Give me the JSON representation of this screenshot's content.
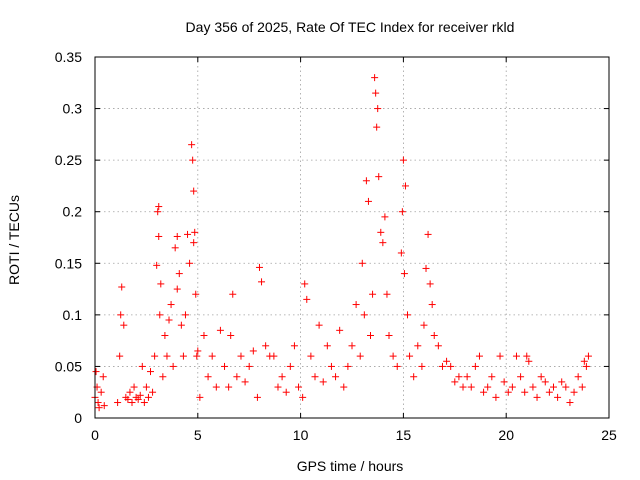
{
  "chart_data": {
    "type": "scatter",
    "title": "Day 356 of 2025, Rate Of TEC Index for receiver rkld",
    "xlabel": "GPS time / hours",
    "ylabel": "ROTI / TECUs",
    "xlim": [
      0,
      25
    ],
    "ylim": [
      0,
      0.35
    ],
    "xticks": [
      "0",
      "5",
      "10",
      "15",
      "20",
      "25"
    ],
    "yticks": [
      "0",
      "0.05",
      "0.1",
      "0.15",
      "0.2",
      "0.25",
      "0.3",
      "0.35"
    ],
    "grid": true,
    "marker": "+",
    "color": "#ff0000",
    "series": [
      {
        "x": [
          0.0,
          0.05,
          0.1,
          0.15,
          0.2,
          0.3,
          0.4,
          0.45,
          1.1,
          1.2,
          1.25,
          1.3,
          1.4,
          1.5,
          1.6,
          1.7,
          1.8,
          1.9,
          2.0,
          2.1,
          2.2,
          2.3,
          2.4,
          2.5,
          2.6,
          2.7,
          2.8,
          2.9,
          3.0,
          3.05,
          3.1,
          3.1,
          3.15,
          3.2,
          3.3,
          3.4,
          3.5,
          3.6,
          3.7,
          3.8,
          3.9,
          4.0,
          4.0,
          4.1,
          4.2,
          4.3,
          4.4,
          4.5,
          4.6,
          4.7,
          4.75,
          4.8,
          4.8,
          4.85,
          4.9,
          4.95,
          5.0,
          5.1,
          5.3,
          5.5,
          5.7,
          5.9,
          6.1,
          6.3,
          6.5,
          6.6,
          6.7,
          6.9,
          7.1,
          7.3,
          7.5,
          7.7,
          7.9,
          8.0,
          8.1,
          8.3,
          8.5,
          8.7,
          8.9,
          9.1,
          9.3,
          9.5,
          9.7,
          9.9,
          10.1,
          10.2,
          10.3,
          10.5,
          10.7,
          10.9,
          11.1,
          11.3,
          11.5,
          11.7,
          11.9,
          12.1,
          12.3,
          12.5,
          12.7,
          12.9,
          13.0,
          13.1,
          13.2,
          13.3,
          13.4,
          13.5,
          13.6,
          13.65,
          13.7,
          13.75,
          13.8,
          13.9,
          14.0,
          14.1,
          14.2,
          14.3,
          14.5,
          14.7,
          14.9,
          14.95,
          15.0,
          15.05,
          15.1,
          15.2,
          15.3,
          15.5,
          15.7,
          15.9,
          16.0,
          16.1,
          16.2,
          16.3,
          16.4,
          16.5,
          16.7,
          16.9,
          17.1,
          17.3,
          17.5,
          17.7,
          17.9,
          18.1,
          18.3,
          18.5,
          18.7,
          18.9,
          19.1,
          19.3,
          19.5,
          19.7,
          19.9,
          20.1,
          20.3,
          20.5,
          20.7,
          20.9,
          21.0,
          21.1,
          21.3,
          21.5,
          21.7,
          21.9,
          22.1,
          22.3,
          22.5,
          22.7,
          22.9,
          23.1,
          23.3,
          23.5,
          23.7,
          23.8,
          23.9,
          24.0
        ],
        "y": [
          0.02,
          0.045,
          0.03,
          0.015,
          0.01,
          0.025,
          0.04,
          0.012,
          0.015,
          0.06,
          0.1,
          0.127,
          0.09,
          0.02,
          0.018,
          0.025,
          0.015,
          0.03,
          0.02,
          0.018,
          0.022,
          0.05,
          0.015,
          0.03,
          0.02,
          0.045,
          0.025,
          0.06,
          0.148,
          0.2,
          0.205,
          0.176,
          0.1,
          0.13,
          0.04,
          0.08,
          0.06,
          0.095,
          0.11,
          0.05,
          0.165,
          0.176,
          0.125,
          0.14,
          0.09,
          0.06,
          0.1,
          0.178,
          0.15,
          0.265,
          0.25,
          0.22,
          0.17,
          0.18,
          0.12,
          0.06,
          0.065,
          0.02,
          0.08,
          0.04,
          0.06,
          0.03,
          0.085,
          0.05,
          0.03,
          0.08,
          0.12,
          0.04,
          0.06,
          0.035,
          0.05,
          0.065,
          0.02,
          0.146,
          0.132,
          0.07,
          0.06,
          0.06,
          0.03,
          0.04,
          0.025,
          0.05,
          0.07,
          0.03,
          0.02,
          0.13,
          0.115,
          0.06,
          0.04,
          0.09,
          0.035,
          0.07,
          0.05,
          0.04,
          0.085,
          0.03,
          0.05,
          0.07,
          0.11,
          0.06,
          0.15,
          0.1,
          0.23,
          0.21,
          0.08,
          0.12,
          0.33,
          0.315,
          0.282,
          0.3,
          0.234,
          0.18,
          0.17,
          0.195,
          0.12,
          0.08,
          0.06,
          0.05,
          0.16,
          0.2,
          0.25,
          0.14,
          0.225,
          0.1,
          0.06,
          0.04,
          0.07,
          0.05,
          0.09,
          0.145,
          0.178,
          0.13,
          0.11,
          0.08,
          0.07,
          0.05,
          0.055,
          0.05,
          0.035,
          0.04,
          0.03,
          0.04,
          0.03,
          0.05,
          0.06,
          0.025,
          0.03,
          0.04,
          0.02,
          0.06,
          0.035,
          0.025,
          0.03,
          0.06,
          0.04,
          0.025,
          0.06,
          0.055,
          0.03,
          0.02,
          0.04,
          0.035,
          0.025,
          0.03,
          0.02,
          0.035,
          0.03,
          0.015,
          0.025,
          0.04,
          0.03,
          0.055,
          0.05,
          0.06
        ]
      }
    ]
  }
}
